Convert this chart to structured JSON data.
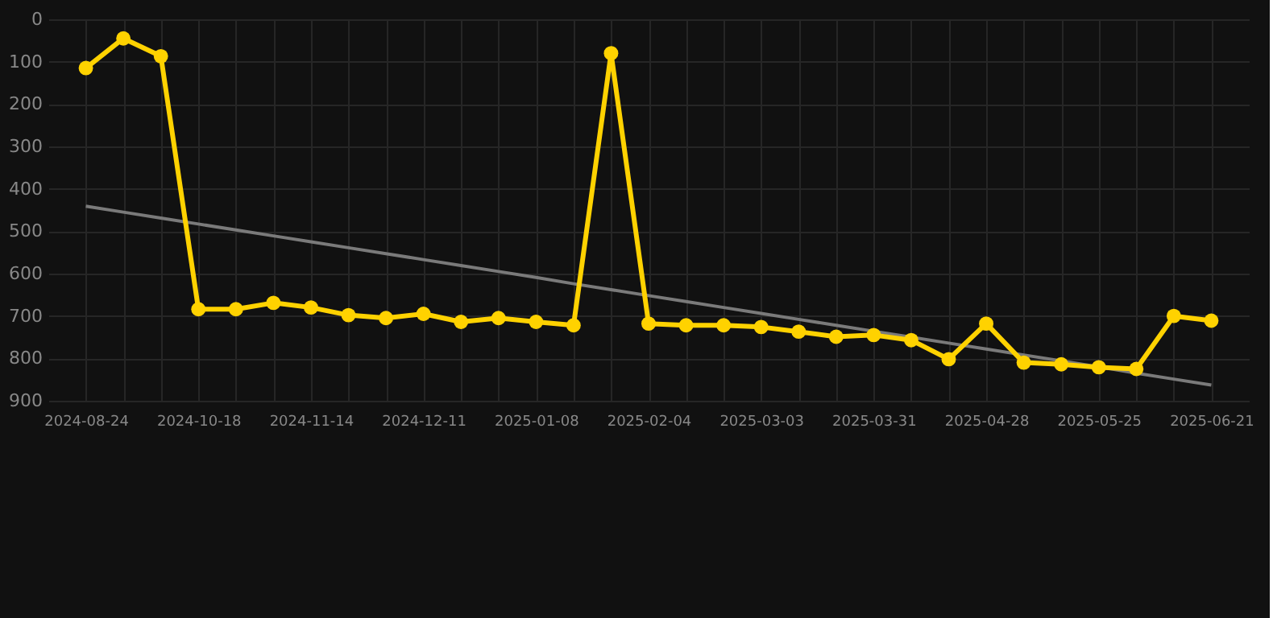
{
  "chart_data": {
    "type": "line",
    "categories": [
      "2024-08-24",
      null,
      null,
      "2024-10-18",
      null,
      null,
      "2024-11-14",
      null,
      null,
      "2024-12-11",
      null,
      null,
      "2025-01-08",
      null,
      null,
      "2025-02-04",
      null,
      null,
      "2025-03-03",
      null,
      null,
      "2025-03-31",
      null,
      null,
      "2025-04-28",
      null,
      null,
      "2025-05-25",
      null,
      null,
      "2025-06-21"
    ],
    "series": [
      {
        "type": "line",
        "color": "#7a7a7a",
        "marker": "none",
        "values": [
          441,
          455,
          469,
          483,
          497,
          511,
          525,
          539,
          553,
          567,
          581,
          595,
          609,
          624,
          638,
          652,
          666,
          680,
          694,
          708,
          722,
          736,
          750,
          764,
          778,
          792,
          806,
          820,
          835,
          849,
          863
        ]
      },
      {
        "color": "#ffd200",
        "marker": "circle",
        "values": [
          115,
          45,
          87,
          684,
          684,
          669,
          680,
          698,
          705,
          695,
          714,
          705,
          714,
          722,
          80,
          718,
          722,
          722,
          726,
          737,
          749,
          745,
          757,
          802,
          718,
          810,
          814,
          821,
          825,
          700,
          711
        ]
      }
    ],
    "ylim": [
      900,
      0
    ],
    "yticks": [
      0,
      100,
      200,
      300,
      400,
      500,
      600,
      700,
      800,
      900
    ],
    "grid": true
  }
}
